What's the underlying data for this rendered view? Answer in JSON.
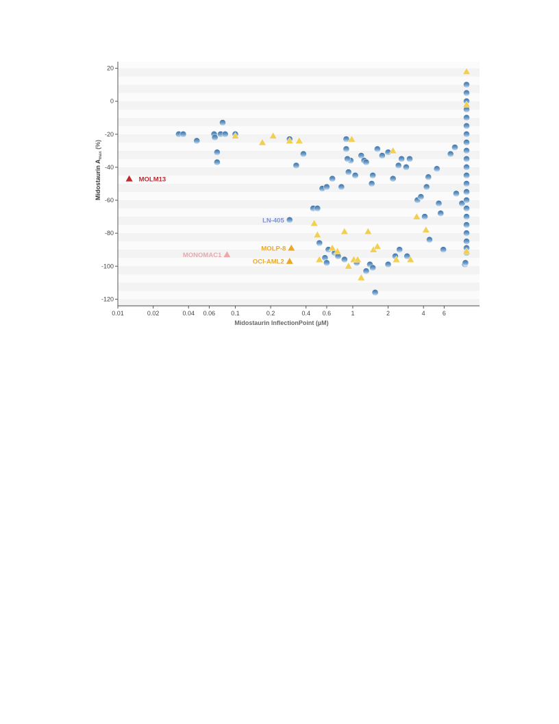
{
  "chart_data": {
    "type": "scatter",
    "xlabel": "Midostaurin InflectionPoint (µM)",
    "ylabel_main": "Midostaurin A",
    "ylabel_sub": "max",
    "ylabel_unit": " (%)",
    "x_scale": "log",
    "xlim": [
      0.01,
      12
    ],
    "ylim": [
      -124,
      24
    ],
    "x_ticks": [
      {
        "value": 0.01,
        "label": "0.01"
      },
      {
        "value": 0.02,
        "label": "0.02"
      },
      {
        "value": 0.04,
        "label": "0.04"
      },
      {
        "value": 0.06,
        "label": "0.06"
      },
      {
        "value": 0.1,
        "label": "0.1"
      },
      {
        "value": 0.2,
        "label": "0.2"
      },
      {
        "value": 0.4,
        "label": "0.4"
      },
      {
        "value": 0.6,
        "label": "0.6"
      },
      {
        "value": 1,
        "label": "1"
      },
      {
        "value": 2,
        "label": "2"
      },
      {
        "value": 4,
        "label": "4"
      },
      {
        "value": 6,
        "label": "6"
      }
    ],
    "y_ticks": [
      {
        "value": 20,
        "label": "20"
      },
      {
        "value": 0,
        "label": "0"
      },
      {
        "value": -20,
        "label": "-20"
      },
      {
        "value": -40,
        "label": "-40"
      },
      {
        "value": -60,
        "label": "-60"
      },
      {
        "value": -80,
        "label": "-80"
      },
      {
        "value": -100,
        "label": "-100"
      },
      {
        "value": -120,
        "label": "-120"
      }
    ],
    "grid": "horizontal bands",
    "colors": {
      "circle": "#4f86b8",
      "triangle": "#f0cf52",
      "molm13": "#c0282f",
      "monomac1": "#e8a8ac",
      "ln405": "#7f8fd0",
      "molp8": "#e8a82a",
      "ociaml2": "#e8a82a"
    },
    "series": [
      {
        "marker": "circle",
        "points": [
          [
            0.033,
            -20
          ],
          [
            0.036,
            -20
          ],
          [
            0.047,
            -24
          ],
          [
            0.066,
            -20
          ],
          [
            0.067,
            -22
          ],
          [
            0.075,
            -20
          ],
          [
            0.082,
            -20
          ],
          [
            0.078,
            -13
          ],
          [
            0.1,
            -20
          ],
          [
            0.07,
            -31
          ],
          [
            0.07,
            -37
          ],
          [
            0.29,
            -23
          ],
          [
            0.33,
            -39
          ],
          [
            0.38,
            -32
          ],
          [
            0.29,
            -72
          ],
          [
            0.46,
            -65
          ],
          [
            0.5,
            -65
          ],
          [
            0.55,
            -53
          ],
          [
            0.6,
            -52
          ],
          [
            0.67,
            -47
          ],
          [
            0.8,
            -52
          ],
          [
            0.88,
            -29
          ],
          [
            0.92,
            -43
          ],
          [
            0.96,
            -36
          ],
          [
            0.88,
            -23
          ],
          [
            1.18,
            -33
          ],
          [
            1.25,
            -36
          ],
          [
            1.3,
            -37
          ],
          [
            1.48,
            -45
          ],
          [
            1.62,
            -29
          ],
          [
            1.78,
            -33
          ],
          [
            2.0,
            -31
          ],
          [
            2.2,
            -47
          ],
          [
            2.45,
            -39
          ],
          [
            2.6,
            -35
          ],
          [
            2.85,
            -40
          ],
          [
            3.05,
            -35
          ],
          [
            3.55,
            -60
          ],
          [
            3.8,
            -58
          ],
          [
            4.1,
            -70
          ],
          [
            4.25,
            -52
          ],
          [
            4.4,
            -46
          ],
          [
            4.5,
            -84
          ],
          [
            5.2,
            -41
          ],
          [
            5.4,
            -62
          ],
          [
            5.6,
            -68
          ],
          [
            5.9,
            -90
          ],
          [
            6.8,
            -32
          ],
          [
            7.4,
            -28
          ],
          [
            7.6,
            -56
          ],
          [
            8.5,
            -62
          ],
          [
            0.52,
            -86
          ],
          [
            0.58,
            -95
          ],
          [
            0.6,
            -98
          ],
          [
            0.62,
            -90
          ],
          [
            0.7,
            -92
          ],
          [
            0.75,
            -94
          ],
          [
            0.85,
            -96
          ],
          [
            1.08,
            -98
          ],
          [
            1.3,
            -103
          ],
          [
            1.4,
            -99
          ],
          [
            1.48,
            -101
          ],
          [
            1.55,
            -116
          ],
          [
            2.0,
            -99
          ],
          [
            2.3,
            -94
          ],
          [
            2.9,
            -94
          ],
          [
            9.0,
            -99
          ],
          [
            9.1,
            -98
          ],
          [
            9.3,
            10
          ],
          [
            9.3,
            5
          ],
          [
            9.3,
            0
          ],
          [
            9.3,
            -5
          ],
          [
            9.3,
            -10
          ],
          [
            9.3,
            -15
          ],
          [
            9.3,
            -20
          ],
          [
            9.3,
            -25
          ],
          [
            9.3,
            -30
          ],
          [
            9.3,
            -35
          ],
          [
            9.3,
            -40
          ],
          [
            9.3,
            -45
          ],
          [
            9.3,
            -50
          ],
          [
            9.3,
            -55
          ],
          [
            9.3,
            -60
          ],
          [
            9.3,
            -65
          ],
          [
            9.3,
            -70
          ],
          [
            9.3,
            -75
          ],
          [
            9.3,
            -80
          ],
          [
            9.3,
            -85
          ],
          [
            9.3,
            -89
          ],
          [
            9.3,
            -92
          ],
          [
            0.9,
            -35
          ],
          [
            1.05,
            -45
          ],
          [
            1.45,
            -50
          ],
          [
            2.5,
            -90
          ]
        ]
      },
      {
        "marker": "triangle",
        "points": [
          [
            0.1,
            -21
          ],
          [
            0.17,
            -25
          ],
          [
            0.21,
            -21
          ],
          [
            0.29,
            -24
          ],
          [
            0.35,
            -24
          ],
          [
            0.47,
            -74
          ],
          [
            0.5,
            -81
          ],
          [
            0.52,
            -96
          ],
          [
            0.67,
            -89
          ],
          [
            0.74,
            -91
          ],
          [
            0.85,
            -79
          ],
          [
            0.92,
            -100
          ],
          [
            0.98,
            -23
          ],
          [
            1.02,
            -96
          ],
          [
            1.1,
            -96
          ],
          [
            1.18,
            -107
          ],
          [
            1.35,
            -79
          ],
          [
            1.5,
            -90
          ],
          [
            1.62,
            -88
          ],
          [
            2.2,
            -30
          ],
          [
            2.35,
            -96
          ],
          [
            3.1,
            -96
          ],
          [
            3.5,
            -70
          ],
          [
            4.2,
            -78
          ],
          [
            9.3,
            18
          ],
          [
            9.3,
            -2
          ],
          [
            9.3,
            -91
          ]
        ]
      }
    ],
    "annotations": [
      {
        "text": "MOLM13",
        "x": 0.0125,
        "y": -47,
        "color_key": "molm13",
        "marker": "triangle"
      },
      {
        "text": "MONOMAC1",
        "x": 0.085,
        "y": -93,
        "color_key": "monomac1",
        "marker": "triangle"
      },
      {
        "text": "LN-405",
        "x": 0.29,
        "y": -72,
        "color_key": "ln405",
        "marker": "none"
      },
      {
        "text": "MOLP-8",
        "x": 0.3,
        "y": -89,
        "color_key": "molp8",
        "marker": "triangle"
      },
      {
        "text": "OCI-AML2",
        "x": 0.29,
        "y": -97,
        "color_key": "ociaml2",
        "marker": "triangle"
      }
    ]
  }
}
